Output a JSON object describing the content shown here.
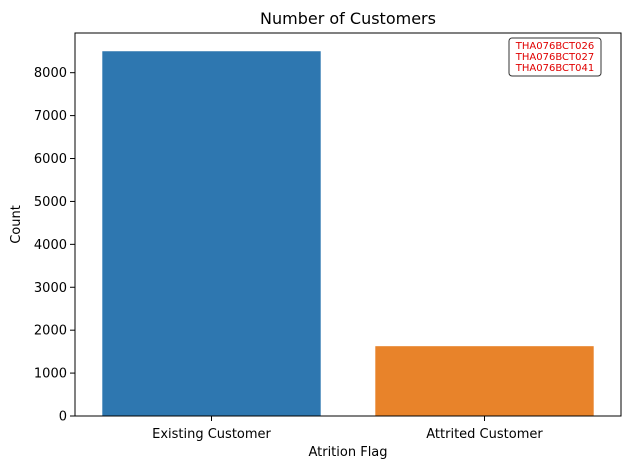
{
  "chart_data": {
    "type": "bar",
    "title": "Number of Customers",
    "xlabel": "Atrition Flag",
    "ylabel": "Count",
    "categories": [
      "Existing Customer",
      "Attrited Customer"
    ],
    "values": [
      8500,
      1627
    ],
    "colors": [
      "#2e77b0",
      "#e8832a"
    ],
    "ylim": [
      0,
      8925
    ],
    "yticks": [
      0,
      1000,
      2000,
      3000,
      4000,
      5000,
      6000,
      7000,
      8000
    ],
    "grid": false,
    "annotation": {
      "lines": [
        "THA076BCT026",
        "THA076BCT027",
        "THA076BCT041"
      ],
      "color": "#e00000",
      "placement": "top-right"
    }
  }
}
